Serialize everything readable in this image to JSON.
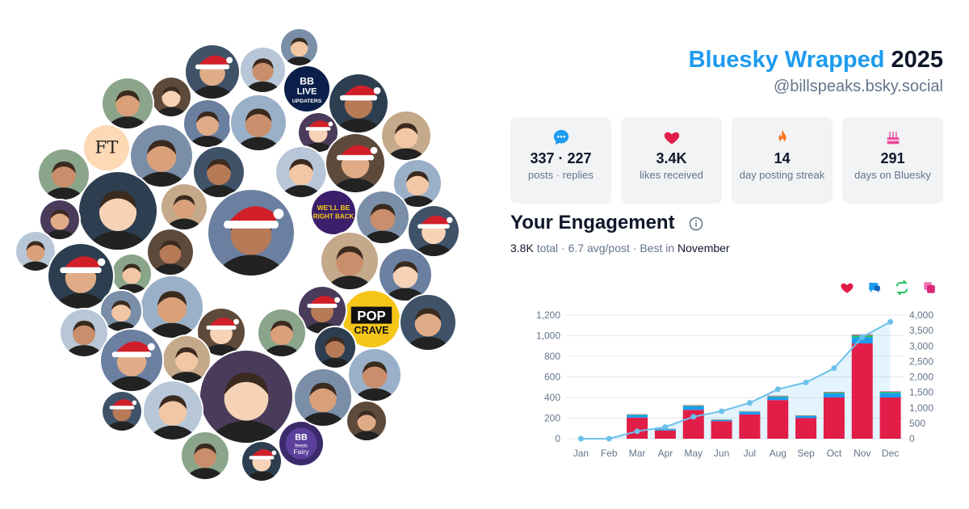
{
  "header": {
    "brand": "Bluesky Wrapped",
    "year": "2025",
    "handle": "@billspeaks.bsky.social"
  },
  "stats": [
    {
      "icon": "speech-bubble-icon",
      "value": "337 · 227",
      "label": "posts · replies",
      "color": "#1d9bf0"
    },
    {
      "icon": "heart-icon",
      "value": "3.4K",
      "label": "likes received",
      "color": "#e11d48"
    },
    {
      "icon": "flame-icon",
      "value": "14",
      "label": "day posting streak",
      "color": "#f97316"
    },
    {
      "icon": "cake-icon",
      "value": "291",
      "label": "days on Bluesky",
      "color": "#ec4899"
    }
  ],
  "engagement": {
    "title": "Your Engagement",
    "total": "3.8K",
    "total_suffix": " total · 6.7 avg/post · Best in ",
    "best_month": "November"
  },
  "legend_icons": [
    {
      "icon": "heart-icon",
      "color": "#e11d48"
    },
    {
      "icon": "reply-icon",
      "color": "#1d9bf0"
    },
    {
      "icon": "repost-icon",
      "color": "#22c55e"
    },
    {
      "icon": "quote-icon",
      "color": "#ec4899"
    }
  ],
  "chart_data": {
    "type": "bar",
    "categories": [
      "Jan",
      "Feb",
      "Mar",
      "Apr",
      "May",
      "Jun",
      "Jul",
      "Aug",
      "Sep",
      "Oct",
      "Nov",
      "Dec"
    ],
    "series": [
      {
        "values": [
          0,
          0,
          205,
          80,
          280,
          170,
          235,
          375,
          200,
          400,
          925,
          400
        ],
        "color": "#e11d48"
      },
      {
        "values": [
          0,
          0,
          25,
          12,
          35,
          12,
          25,
          30,
          20,
          40,
          60,
          45
        ],
        "color": "#1d9bf0"
      },
      {
        "values": [
          0,
          0,
          5,
          3,
          8,
          4,
          5,
          8,
          5,
          10,
          20,
          10
        ],
        "color": "#22c55e"
      },
      {
        "values": [
          0,
          0,
          3,
          2,
          4,
          2,
          3,
          5,
          3,
          5,
          8,
          5
        ],
        "color": "#ec4899"
      }
    ],
    "cumulative": {
      "values": [
        0,
        0,
        240,
        380,
        710,
        890,
        1160,
        1600,
        1820,
        2280,
        3290,
        3780
      ],
      "color": "#6cc1ec"
    },
    "ylim": [
      0,
      1200
    ],
    "y2lim": [
      0,
      4000
    ],
    "yticks": [
      "0",
      "200",
      "400",
      "600",
      "800",
      "1,000",
      "1,200"
    ],
    "y2ticks": [
      "0",
      "500",
      "1,000",
      "1,500",
      "2,000",
      "2,500",
      "3,000",
      "3,500",
      "4,000"
    ],
    "grid": true
  },
  "avatars": [
    {
      "label": "FT",
      "bg": "#fdd9b5",
      "fg": "#222222"
    },
    {
      "label": "BB LIVE UPDATERS",
      "bg": "#0b1f4a",
      "fg": "#ffffff"
    },
    {
      "label": "POP CRAVE",
      "bg": "#f5c518",
      "fg": "#111111"
    },
    {
      "label": "BB Feeds Fairy",
      "bg": "#3b2a6b",
      "fg": "#ffffff"
    },
    {
      "label": "WE'LL BE RIGHT BACK",
      "bg": "#3b1f6b",
      "fg": "#facc15"
    }
  ]
}
